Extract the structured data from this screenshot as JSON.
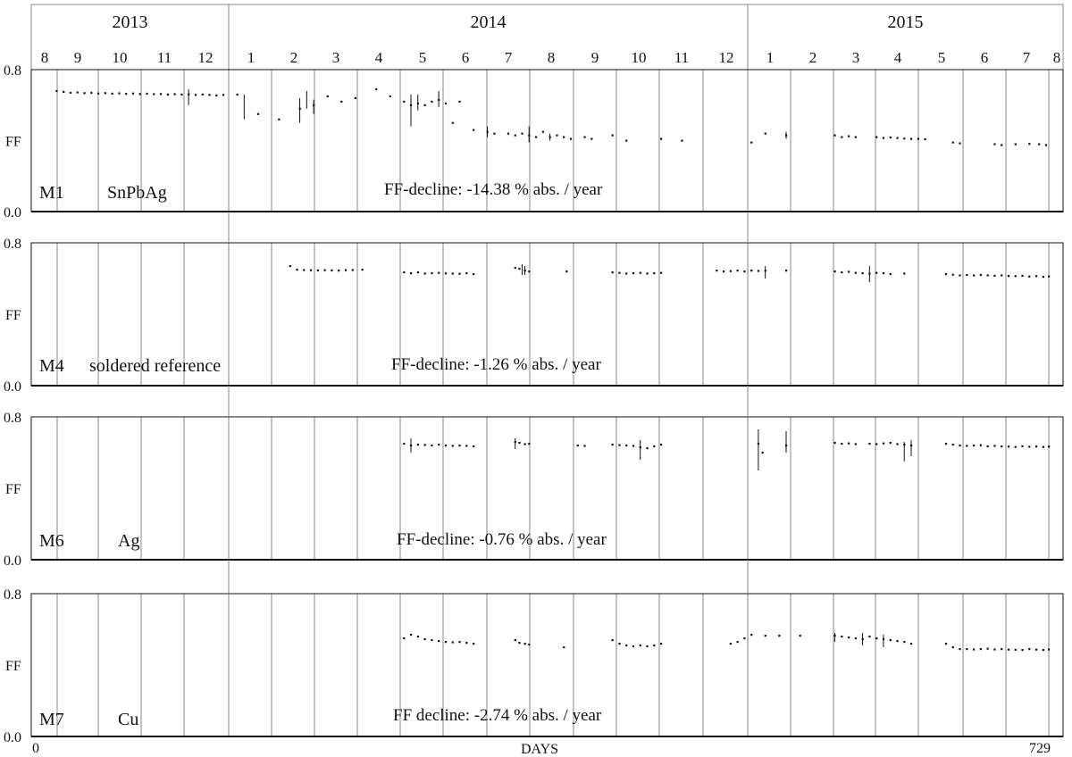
{
  "chart_data": {
    "type": "scatter",
    "x_range": [
      0,
      729
    ],
    "x_tick_labels": [
      "0",
      "729"
    ],
    "xlabel": "DAYS",
    "years": [
      "2013",
      "2014",
      "2015"
    ],
    "month_labels": [
      "8",
      "9",
      "10",
      "11",
      "12",
      "1",
      "2",
      "3",
      "4",
      "5",
      "6",
      "7",
      "8",
      "9",
      "10",
      "11",
      "12",
      "1",
      "2",
      "3",
      "4",
      "5",
      "6",
      "7",
      "8"
    ],
    "ylabel": "FF",
    "ylim": [
      0.0,
      0.8
    ],
    "y_tick_labels": [
      "0.0",
      "0.8"
    ],
    "panels": [
      {
        "id": "M1",
        "label": "SnPbAg",
        "decline_text": "FF-decline:   -14.38 % abs. / year",
        "points": [
          [
            15,
            0.68
          ],
          [
            20,
            0.675
          ],
          [
            25,
            0.67
          ],
          [
            30,
            0.672
          ],
          [
            35,
            0.668
          ],
          [
            40,
            0.67
          ],
          [
            45,
            0.666
          ],
          [
            50,
            0.668
          ],
          [
            55,
            0.665
          ],
          [
            60,
            0.667
          ],
          [
            65,
            0.664
          ],
          [
            70,
            0.666
          ],
          [
            75,
            0.663
          ],
          [
            80,
            0.665
          ],
          [
            85,
            0.662
          ],
          [
            90,
            0.663
          ],
          [
            95,
            0.66
          ],
          [
            100,
            0.662
          ],
          [
            105,
            0.66
          ],
          [
            110,
            0.661
          ],
          [
            115,
            0.658
          ],
          [
            120,
            0.66
          ],
          [
            125,
            0.658
          ],
          [
            130,
            0.655
          ],
          [
            135,
            0.658
          ],
          [
            145,
            0.66
          ],
          [
            160,
            0.55
          ],
          [
            175,
            0.52
          ],
          [
            190,
            0.58
          ],
          [
            200,
            0.6
          ],
          [
            210,
            0.65
          ],
          [
            220,
            0.62
          ],
          [
            230,
            0.64
          ],
          [
            245,
            0.69
          ],
          [
            255,
            0.65
          ],
          [
            265,
            0.62
          ],
          [
            270,
            0.6
          ],
          [
            275,
            0.61
          ],
          [
            280,
            0.6
          ],
          [
            285,
            0.62
          ],
          [
            290,
            0.63
          ],
          [
            295,
            0.61
          ],
          [
            300,
            0.5
          ],
          [
            305,
            0.62
          ],
          [
            315,
            0.46
          ],
          [
            325,
            0.45
          ],
          [
            330,
            0.44
          ],
          [
            340,
            0.44
          ],
          [
            345,
            0.43
          ],
          [
            350,
            0.44
          ],
          [
            355,
            0.43
          ],
          [
            360,
            0.42
          ],
          [
            365,
            0.45
          ],
          [
            370,
            0.42
          ],
          [
            375,
            0.43
          ],
          [
            380,
            0.42
          ],
          [
            385,
            0.41
          ],
          [
            395,
            0.42
          ],
          [
            400,
            0.41
          ],
          [
            415,
            0.43
          ],
          [
            425,
            0.4
          ],
          [
            450,
            0.41
          ],
          [
            465,
            0.4
          ],
          [
            515,
            0.39
          ],
          [
            525,
            0.44
          ],
          [
            540,
            0.43
          ],
          [
            575,
            0.43
          ],
          [
            580,
            0.42
          ],
          [
            585,
            0.425
          ],
          [
            590,
            0.42
          ],
          [
            605,
            0.42
          ],
          [
            610,
            0.415
          ],
          [
            615,
            0.418
          ],
          [
            620,
            0.415
          ],
          [
            625,
            0.412
          ],
          [
            630,
            0.41
          ],
          [
            635,
            0.41
          ],
          [
            640,
            0.408
          ],
          [
            660,
            0.39
          ],
          [
            665,
            0.385
          ],
          [
            690,
            0.38
          ],
          [
            695,
            0.375
          ],
          [
            705,
            0.38
          ],
          [
            715,
            0.382
          ],
          [
            722,
            0.38
          ],
          [
            727,
            0.375
          ]
        ],
        "error_bars": [
          [
            110,
            0.6,
            0.69
          ],
          [
            150,
            0.52,
            0.66
          ],
          [
            190,
            0.5,
            0.64
          ],
          [
            195,
            0.58,
            0.68
          ],
          [
            200,
            0.55,
            0.63
          ],
          [
            270,
            0.48,
            0.66
          ],
          [
            275,
            0.57,
            0.66
          ],
          [
            290,
            0.59,
            0.68
          ],
          [
            325,
            0.42,
            0.48
          ],
          [
            355,
            0.39,
            0.48
          ],
          [
            370,
            0.4,
            0.44
          ],
          [
            540,
            0.41,
            0.45
          ]
        ]
      },
      {
        "id": "M4",
        "label": "soldered reference",
        "decline_text": "FF-decline:   -1.26 % abs. / year",
        "points": [
          [
            183,
            0.67
          ],
          [
            188,
            0.65
          ],
          [
            193,
            0.648
          ],
          [
            198,
            0.647
          ],
          [
            203,
            0.646
          ],
          [
            208,
            0.647
          ],
          [
            213,
            0.646
          ],
          [
            218,
            0.645
          ],
          [
            223,
            0.647
          ],
          [
            228,
            0.648
          ],
          [
            235,
            0.65
          ],
          [
            265,
            0.635
          ],
          [
            270,
            0.63
          ],
          [
            275,
            0.635
          ],
          [
            280,
            0.628
          ],
          [
            285,
            0.63
          ],
          [
            290,
            0.632
          ],
          [
            295,
            0.629
          ],
          [
            300,
            0.628
          ],
          [
            305,
            0.627
          ],
          [
            310,
            0.63
          ],
          [
            315,
            0.625
          ],
          [
            345,
            0.66
          ],
          [
            348,
            0.655
          ],
          [
            352,
            0.645
          ],
          [
            355,
            0.64
          ],
          [
            382,
            0.64
          ],
          [
            415,
            0.635
          ],
          [
            420,
            0.632
          ],
          [
            425,
            0.628
          ],
          [
            430,
            0.63
          ],
          [
            435,
            0.632
          ],
          [
            440,
            0.628
          ],
          [
            445,
            0.63
          ],
          [
            450,
            0.632
          ],
          [
            490,
            0.645
          ],
          [
            495,
            0.64
          ],
          [
            500,
            0.642
          ],
          [
            505,
            0.645
          ],
          [
            510,
            0.64
          ],
          [
            515,
            0.645
          ],
          [
            520,
            0.643
          ],
          [
            525,
            0.644
          ],
          [
            540,
            0.645
          ],
          [
            575,
            0.64
          ],
          [
            580,
            0.635
          ],
          [
            585,
            0.638
          ],
          [
            590,
            0.632
          ],
          [
            595,
            0.63
          ],
          [
            600,
            0.628
          ],
          [
            605,
            0.632
          ],
          [
            610,
            0.63
          ],
          [
            615,
            0.625
          ],
          [
            625,
            0.628
          ],
          [
            655,
            0.625
          ],
          [
            660,
            0.622
          ],
          [
            665,
            0.618
          ],
          [
            670,
            0.62
          ],
          [
            675,
            0.618
          ],
          [
            680,
            0.62
          ],
          [
            685,
            0.618
          ],
          [
            690,
            0.616
          ],
          [
            695,
            0.618
          ],
          [
            700,
            0.615
          ],
          [
            705,
            0.614
          ],
          [
            710,
            0.616
          ],
          [
            715,
            0.612
          ],
          [
            720,
            0.614
          ],
          [
            725,
            0.61
          ],
          [
            729,
            0.612
          ]
        ],
        "error_bars": [
          [
            350,
            0.62,
            0.68
          ],
          [
            352,
            0.62,
            0.67
          ],
          [
            525,
            0.6,
            0.67
          ],
          [
            600,
            0.58,
            0.67
          ]
        ]
      },
      {
        "id": "M6",
        "label": "Ag",
        "decline_text": "FF-decline:   -0.76 % abs. / year",
        "points": [
          [
            265,
            0.65
          ],
          [
            270,
            0.64
          ],
          [
            275,
            0.645
          ],
          [
            280,
            0.643
          ],
          [
            285,
            0.64
          ],
          [
            290,
            0.645
          ],
          [
            295,
            0.64
          ],
          [
            300,
            0.638
          ],
          [
            305,
            0.64
          ],
          [
            310,
            0.638
          ],
          [
            315,
            0.635
          ],
          [
            345,
            0.66
          ],
          [
            348,
            0.655
          ],
          [
            352,
            0.648
          ],
          [
            355,
            0.65
          ],
          [
            390,
            0.64
          ],
          [
            395,
            0.638
          ],
          [
            415,
            0.645
          ],
          [
            420,
            0.642
          ],
          [
            425,
            0.64
          ],
          [
            430,
            0.638
          ],
          [
            435,
            0.63
          ],
          [
            440,
            0.625
          ],
          [
            445,
            0.635
          ],
          [
            450,
            0.645
          ],
          [
            520,
            0.65
          ],
          [
            523,
            0.6
          ],
          [
            540,
            0.64
          ],
          [
            575,
            0.655
          ],
          [
            580,
            0.65
          ],
          [
            585,
            0.652
          ],
          [
            590,
            0.648
          ],
          [
            600,
            0.65
          ],
          [
            605,
            0.648
          ],
          [
            610,
            0.652
          ],
          [
            615,
            0.655
          ],
          [
            620,
            0.648
          ],
          [
            625,
            0.645
          ],
          [
            630,
            0.64
          ],
          [
            655,
            0.65
          ],
          [
            660,
            0.645
          ],
          [
            665,
            0.64
          ],
          [
            670,
            0.638
          ],
          [
            675,
            0.64
          ],
          [
            680,
            0.642
          ],
          [
            685,
            0.636
          ],
          [
            690,
            0.638
          ],
          [
            695,
            0.635
          ],
          [
            700,
            0.634
          ],
          [
            705,
            0.632
          ],
          [
            710,
            0.636
          ],
          [
            715,
            0.633
          ],
          [
            720,
            0.635
          ],
          [
            725,
            0.632
          ],
          [
            729,
            0.634
          ]
        ],
        "error_bars": [
          [
            270,
            0.6,
            0.68
          ],
          [
            345,
            0.62,
            0.68
          ],
          [
            435,
            0.56,
            0.67
          ],
          [
            520,
            0.5,
            0.73
          ],
          [
            540,
            0.6,
            0.72
          ],
          [
            625,
            0.55,
            0.66
          ],
          [
            630,
            0.58,
            0.67
          ]
        ]
      },
      {
        "id": "M7",
        "label": "Cu",
        "decline_text": "FF decline:   -2.74 % abs. / year",
        "points": [
          [
            265,
            0.55
          ],
          [
            270,
            0.57
          ],
          [
            275,
            0.56
          ],
          [
            280,
            0.545
          ],
          [
            285,
            0.54
          ],
          [
            290,
            0.535
          ],
          [
            295,
            0.53
          ],
          [
            300,
            0.528
          ],
          [
            305,
            0.53
          ],
          [
            310,
            0.525
          ],
          [
            315,
            0.52
          ],
          [
            345,
            0.54
          ],
          [
            348,
            0.525
          ],
          [
            352,
            0.52
          ],
          [
            355,
            0.515
          ],
          [
            380,
            0.5
          ],
          [
            415,
            0.54
          ],
          [
            420,
            0.52
          ],
          [
            425,
            0.51
          ],
          [
            430,
            0.505
          ],
          [
            435,
            0.51
          ],
          [
            440,
            0.505
          ],
          [
            445,
            0.51
          ],
          [
            450,
            0.52
          ],
          [
            500,
            0.52
          ],
          [
            505,
            0.53
          ],
          [
            510,
            0.55
          ],
          [
            515,
            0.57
          ],
          [
            525,
            0.565
          ],
          [
            535,
            0.565
          ],
          [
            550,
            0.565
          ],
          [
            575,
            0.565
          ],
          [
            580,
            0.56
          ],
          [
            585,
            0.555
          ],
          [
            590,
            0.55
          ],
          [
            595,
            0.545
          ],
          [
            600,
            0.56
          ],
          [
            605,
            0.55
          ],
          [
            610,
            0.545
          ],
          [
            615,
            0.54
          ],
          [
            620,
            0.535
          ],
          [
            625,
            0.53
          ],
          [
            630,
            0.52
          ],
          [
            655,
            0.52
          ],
          [
            660,
            0.5
          ],
          [
            665,
            0.49
          ],
          [
            670,
            0.49
          ],
          [
            675,
            0.488
          ],
          [
            680,
            0.49
          ],
          [
            685,
            0.492
          ],
          [
            690,
            0.488
          ],
          [
            695,
            0.49
          ],
          [
            700,
            0.487
          ],
          [
            705,
            0.486
          ],
          [
            710,
            0.485
          ],
          [
            715,
            0.49
          ],
          [
            720,
            0.487
          ],
          [
            725,
            0.485
          ],
          [
            729,
            0.488
          ]
        ],
        "error_bars": [
          [
            575,
            0.53,
            0.58
          ],
          [
            595,
            0.51,
            0.58
          ],
          [
            610,
            0.5,
            0.57
          ]
        ]
      }
    ],
    "grid": "vertical month boundaries",
    "colors": {
      "frame": "#111111",
      "gridline": "#8a8a8a",
      "point": "#111111"
    }
  }
}
